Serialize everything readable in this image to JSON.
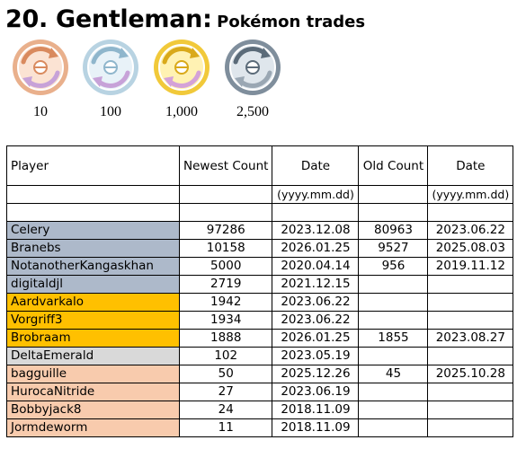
{
  "heading": {
    "number_title": "20. Gentleman:",
    "subtitle": "Pokémon trades"
  },
  "medals": [
    {
      "label": "10",
      "tier": "bronze",
      "ring": "#e9b08c",
      "face": "#fbe3d3",
      "arrow1": "#d98a5e",
      "arrow2": "#c7a2d8"
    },
    {
      "label": "100",
      "tier": "silver",
      "ring": "#b8d3e2",
      "face": "#e8f2f8",
      "arrow1": "#8fb6cc",
      "arrow2": "#c7a2d8"
    },
    {
      "label": "1,000",
      "tier": "gold",
      "ring": "#f1c93a",
      "face": "#fff2b3",
      "arrow1": "#d9a91a",
      "arrow2": "#d4a2d8"
    },
    {
      "label": "2,500",
      "tier": "platinum",
      "ring": "#7f8e9c",
      "face": "#dfe6ec",
      "arrow1": "#5b6b79",
      "arrow2": "#9aa7b3"
    }
  ],
  "table": {
    "headers": {
      "player": "Player",
      "newest_count": "Newest Count",
      "date": "Date",
      "old_count": "Old Count",
      "old_date": "Date"
    },
    "date_format": "(yyyy.mm.dd)",
    "colors": {
      "platinum": "#adb9ca",
      "gold": "#ffc000",
      "silver": "#d9d9d9",
      "bronze": "#f8cbad"
    },
    "rows": [
      {
        "player": "Celery",
        "newest": "97286",
        "date": "2023.12.08",
        "old": "80963",
        "old_date": "2023.06.22",
        "tier": "platinum"
      },
      {
        "player": "Branebs",
        "newest": "10158",
        "date": "2026.01.25",
        "old": "9527",
        "old_date": "2025.08.03",
        "tier": "platinum"
      },
      {
        "player": "NotanotherKangaskhan",
        "newest": "5000",
        "date": "2020.04.14",
        "old": "956",
        "old_date": "2019.11.12",
        "tier": "platinum"
      },
      {
        "player": "digitaldjl",
        "newest": "2719",
        "date": "2021.12.15",
        "old": "",
        "old_date": "",
        "tier": "platinum"
      },
      {
        "player": "Aardvarkalo",
        "newest": "1942",
        "date": "2023.06.22",
        "old": "",
        "old_date": "",
        "tier": "gold"
      },
      {
        "player": "Vorgriff3",
        "newest": "1934",
        "date": "2023.06.22",
        "old": "",
        "old_date": "",
        "tier": "gold"
      },
      {
        "player": "Brobraam",
        "newest": "1888",
        "date": "2026.01.25",
        "old": "1855",
        "old_date": "2023.08.27",
        "tier": "gold"
      },
      {
        "player": "DeltaEmerald",
        "newest": "102",
        "date": "2023.05.19",
        "old": "",
        "old_date": "",
        "tier": "silver"
      },
      {
        "player": "bagguille",
        "newest": "50",
        "date": "2025.12.26",
        "old": "45",
        "old_date": "2025.10.28",
        "tier": "bronze"
      },
      {
        "player": "HurocaNitride",
        "newest": "27",
        "date": "2023.06.19",
        "old": "",
        "old_date": "",
        "tier": "bronze"
      },
      {
        "player": "Bobbyjack8",
        "newest": "24",
        "date": "2018.11.09",
        "old": "",
        "old_date": "",
        "tier": "bronze"
      },
      {
        "player": "Jormdeworm",
        "newest": "11",
        "date": "2018.11.09",
        "old": "",
        "old_date": "",
        "tier": "bronze"
      }
    ]
  }
}
